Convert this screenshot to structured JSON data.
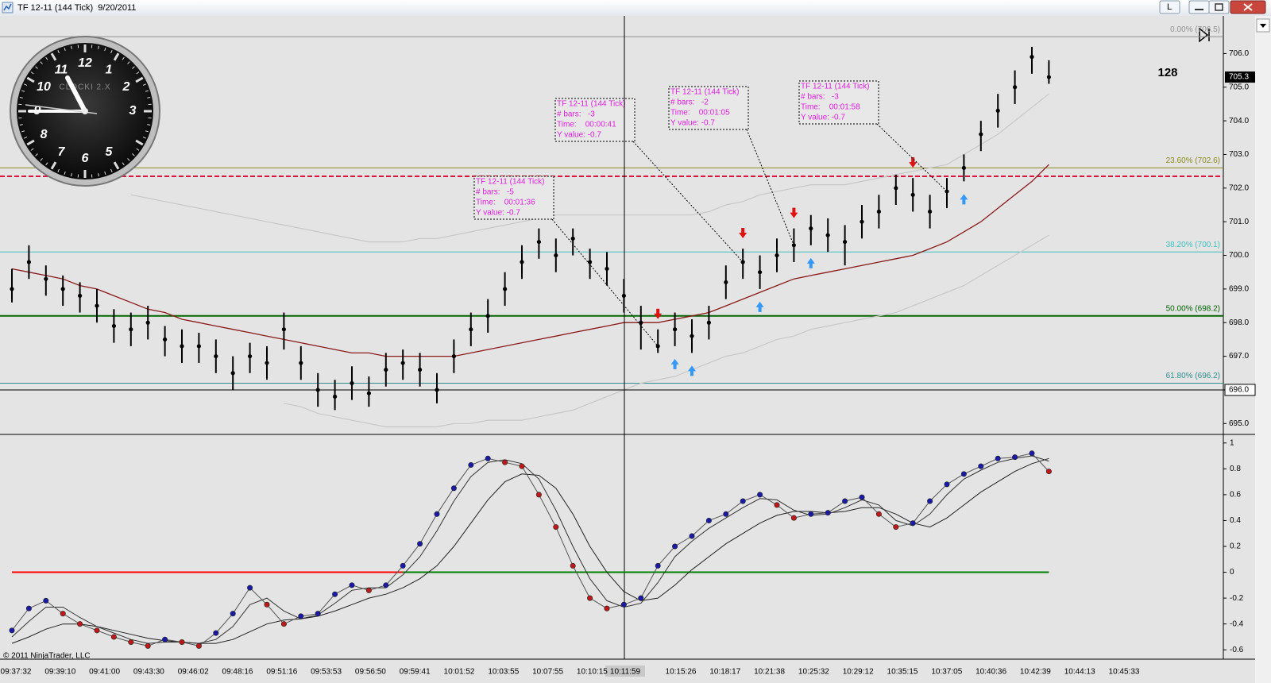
{
  "window": {
    "title": "TF 12-11 (144 Tick)  9/20/2011",
    "button": "L"
  },
  "clock": {
    "brand": "CLOCKI 2.X",
    "numerals": [
      12,
      1,
      2,
      3,
      5,
      6,
      7,
      8,
      9,
      10,
      11
    ]
  },
  "copyright": "© 2011 NinjaTrader, LLC",
  "chart_data": [
    {
      "type": "ohlc",
      "bar_color": "#000000",
      "high": [
        699.6,
        700.3,
        699.7,
        699.4,
        699.2,
        699.0,
        698.4,
        698.3,
        698.5,
        697.9,
        697.8,
        697.7,
        697.5,
        697.0,
        697.4,
        697.3,
        698.3,
        697.3,
        696.5,
        696.3,
        696.7,
        696.4,
        697.1,
        697.2,
        697.1,
        696.5,
        697.5,
        698.3,
        698.7,
        699.5,
        700.3,
        700.8,
        700.5,
        700.8,
        700.2,
        700.1,
        699.3,
        698.5,
        697.8,
        698.3,
        698.1,
        698.5,
        699.7,
        700.2,
        700.0,
        700.5,
        700.8,
        701.2,
        701.1,
        700.9,
        701.5,
        701.8,
        702.4,
        702.3,
        701.8,
        702.3,
        703.0,
        704.0,
        704.8,
        705.5,
        706.2,
        705.8
      ],
      "low": [
        698.6,
        699.3,
        698.8,
        698.5,
        698.3,
        698.0,
        697.4,
        697.3,
        697.5,
        697.0,
        696.8,
        696.8,
        696.5,
        696.0,
        696.5,
        696.3,
        697.2,
        696.3,
        695.5,
        695.4,
        695.7,
        695.5,
        696.1,
        696.3,
        696.1,
        695.6,
        696.5,
        697.3,
        697.7,
        698.5,
        699.3,
        699.9,
        699.5,
        700.0,
        699.3,
        699.1,
        698.3,
        697.2,
        697.1,
        697.3,
        697.1,
        697.5,
        698.7,
        699.3,
        699.0,
        699.5,
        699.8,
        700.3,
        700.1,
        699.7,
        700.5,
        700.8,
        701.5,
        701.3,
        700.8,
        701.4,
        702.2,
        703.1,
        703.8,
        704.5,
        705.4,
        705.1
      ],
      "close": [
        699.0,
        699.8,
        699.3,
        699.0,
        698.8,
        698.5,
        697.9,
        697.8,
        698.0,
        697.5,
        697.3,
        697.3,
        697.0,
        696.5,
        697.0,
        696.8,
        697.8,
        696.8,
        696.0,
        695.8,
        696.2,
        695.9,
        696.6,
        696.8,
        696.6,
        696.0,
        697.0,
        697.8,
        698.2,
        699.0,
        699.8,
        700.4,
        700.0,
        700.5,
        699.8,
        699.6,
        698.8,
        698.0,
        697.3,
        697.8,
        697.6,
        698.0,
        699.2,
        699.8,
        699.5,
        700.0,
        700.3,
        700.8,
        700.6,
        700.4,
        701.0,
        701.3,
        702.0,
        701.8,
        701.3,
        701.9,
        702.6,
        703.6,
        704.3,
        705.0,
        705.9,
        705.3
      ],
      "series": [
        {
          "color": "#8b1a1a",
          "values": [
            699.6,
            699.5,
            699.4,
            699.3,
            699.1,
            699.0,
            698.8,
            698.6,
            698.4,
            698.3,
            698.1,
            698.0,
            697.9,
            697.8,
            697.7,
            697.6,
            697.5,
            697.4,
            697.3,
            697.2,
            697.1,
            697.1,
            697.0,
            697.0,
            697.0,
            697.0,
            697.0,
            697.1,
            697.2,
            697.3,
            697.4,
            697.5,
            697.6,
            697.7,
            697.8,
            697.9,
            698.0,
            698.0,
            698.0,
            698.1,
            698.2,
            698.3,
            698.5,
            698.7,
            698.9,
            699.1,
            699.3,
            699.4,
            699.5,
            699.6,
            699.7,
            699.8,
            699.9,
            700.0,
            700.2,
            700.4,
            700.7,
            701.0,
            701.4,
            701.8,
            702.2,
            702.7
          ]
        },
        {
          "color": "#c8c8c8",
          "values": [
            null,
            null,
            null,
            null,
            null,
            null,
            null,
            701.8,
            701.7,
            701.6,
            701.5,
            701.4,
            701.3,
            701.2,
            701.1,
            701.0,
            700.9,
            700.8,
            700.7,
            700.6,
            700.5,
            700.4,
            700.4,
            700.4,
            700.5,
            700.5,
            700.6,
            700.7,
            700.8,
            700.9,
            701.0,
            701.1,
            701.2,
            701.2,
            701.2,
            701.2,
            701.2,
            701.2,
            701.2,
            701.2,
            701.2,
            701.3,
            701.5,
            701.6,
            701.8,
            701.9,
            702.0,
            702.1,
            702.1,
            702.1,
            702.2,
            702.3,
            702.4,
            702.5,
            702.6,
            702.7,
            703.0,
            703.3,
            703.6,
            704.0,
            704.4,
            704.8
          ]
        },
        {
          "color": "#c8c8c8",
          "values": [
            null,
            null,
            null,
            null,
            null,
            null,
            null,
            null,
            null,
            null,
            null,
            null,
            null,
            null,
            null,
            null,
            695.6,
            695.5,
            695.3,
            695.2,
            695.1,
            695.0,
            694.9,
            694.9,
            694.9,
            694.9,
            695.0,
            695.0,
            695.1,
            695.1,
            695.1,
            695.2,
            695.3,
            695.4,
            695.6,
            695.8,
            696.0,
            696.2,
            696.3,
            696.4,
            696.6,
            696.8,
            697.0,
            697.1,
            697.3,
            697.5,
            697.6,
            697.8,
            697.9,
            698.0,
            698.1,
            698.2,
            698.3,
            698.5,
            698.7,
            698.9,
            699.1,
            699.4,
            699.7,
            700.0,
            700.3,
            700.6
          ]
        }
      ],
      "ylim": [
        694.7,
        706.6
      ],
      "yticks": [
        {
          "value": 695,
          "label": "695.0"
        },
        {
          "value": 696,
          "label": "696.0"
        },
        {
          "value": 697,
          "label": "697.0"
        },
        {
          "value": 698,
          "label": "698.0"
        },
        {
          "value": 699,
          "label": "699.0"
        },
        {
          "value": 700,
          "label": "700.0"
        },
        {
          "value": 701,
          "label": "701.0"
        },
        {
          "value": 702,
          "label": "702.0"
        },
        {
          "value": 703,
          "label": "703.0"
        },
        {
          "value": 704,
          "label": "704.0"
        },
        {
          "value": 705,
          "label": "705.0"
        },
        {
          "value": 706,
          "label": "706.0"
        }
      ],
      "levels": [
        {
          "value": 706.5,
          "label": "0.00% (706.5)",
          "color": "#909090"
        },
        {
          "value": 702.6,
          "label": "23.60% (702.6)",
          "color": "#8a8a20"
        },
        {
          "value": 700.1,
          "label": "38.20% (700.1)",
          "color": "#40c0c0"
        },
        {
          "value": 698.2,
          "label": "50.00% (698.2)",
          "color": "#006400"
        },
        {
          "value": 696.2,
          "label": "61.80% (696.2)",
          "color": "#2f8f8f"
        }
      ],
      "dashed_level": {
        "value": 702.35,
        "color": "#dc143c"
      },
      "last_price": {
        "value": 705.3,
        "label": "705.3"
      },
      "crosshair": {
        "value": 696.0,
        "label": "696.0",
        "time_label": "10:11:59"
      },
      "tick_counter": 128,
      "down_arrows": [
        38,
        43,
        46,
        53
      ],
      "up_arrows": [
        39,
        40,
        44,
        47,
        56
      ],
      "arrow_colors": [
        "#e01010",
        "#3399ff"
      ],
      "annotations": [
        {
          "bar": 38,
          "lines": [
            "TF 12-11 (144 Tick)",
            "# bars:   -5",
            "Time:    00:01:36",
            "Y value: -0.7"
          ]
        },
        {
          "bar": 43,
          "lines": [
            "TF 12-11 (144 Tick)",
            "# bars:   -3",
            "Time:    00:00:41",
            "Y value: -0.7"
          ]
        },
        {
          "bar": 46,
          "lines": [
            "TF 12-11 (144 Tick)",
            "# bars:   -2",
            "Time:    00:01:05",
            "Y value: -0.7"
          ]
        },
        {
          "bar": 55,
          "lines": [
            "TF 12-11 (144 Tick)",
            "# bars:   -3",
            "Time:    00:01:58",
            "Y value: -0.7"
          ]
        }
      ]
    },
    {
      "type": "oscillator",
      "series": [
        {
          "rising_color": "#1a1aa8",
          "falling_color": "#c01818",
          "values": [
            -0.45,
            -0.28,
            -0.22,
            -0.32,
            -0.4,
            -0.45,
            -0.5,
            -0.54,
            -0.57,
            -0.52,
            -0.54,
            -0.57,
            -0.47,
            -0.32,
            -0.12,
            -0.25,
            -0.4,
            -0.34,
            -0.32,
            -0.17,
            -0.1,
            -0.14,
            -0.1,
            0.05,
            0.22,
            0.45,
            0.65,
            0.83,
            0.88,
            0.85,
            0.82,
            0.6,
            0.35,
            0.05,
            -0.2,
            -0.28,
            -0.25,
            -0.2,
            0.05,
            0.2,
            0.28,
            0.4,
            0.45,
            0.55,
            0.6,
            0.52,
            0.42,
            0.45,
            0.46,
            0.55,
            0.58,
            0.45,
            0.35,
            0.38,
            0.55,
            0.68,
            0.76,
            0.82,
            0.88,
            0.89,
            0.92,
            0.78
          ]
        },
        {
          "color": "#333333",
          "values": [
            -0.5,
            -0.38,
            -0.27,
            -0.27,
            -0.35,
            -0.42,
            -0.47,
            -0.52,
            -0.55,
            -0.54,
            -0.54,
            -0.55,
            -0.52,
            -0.42,
            -0.25,
            -0.2,
            -0.3,
            -0.36,
            -0.33,
            -0.24,
            -0.14,
            -0.12,
            -0.12,
            -0.02,
            0.12,
            0.32,
            0.55,
            0.74,
            0.85,
            0.87,
            0.84,
            0.72,
            0.48,
            0.2,
            -0.05,
            -0.22,
            -0.27,
            -0.24,
            -0.08,
            0.12,
            0.24,
            0.34,
            0.42,
            0.5,
            0.57,
            0.56,
            0.48,
            0.44,
            0.45,
            0.5,
            0.56,
            0.52,
            0.4,
            0.36,
            0.45,
            0.6,
            0.72,
            0.79,
            0.85,
            0.88,
            0.9,
            0.86
          ]
        },
        {
          "color": "#222222",
          "values": [
            -0.55,
            -0.5,
            -0.44,
            -0.4,
            -0.4,
            -0.42,
            -0.45,
            -0.48,
            -0.51,
            -0.53,
            -0.54,
            -0.55,
            -0.55,
            -0.52,
            -0.46,
            -0.4,
            -0.37,
            -0.36,
            -0.34,
            -0.3,
            -0.25,
            -0.2,
            -0.17,
            -0.12,
            -0.05,
            0.05,
            0.2,
            0.38,
            0.56,
            0.7,
            0.76,
            0.75,
            0.65,
            0.45,
            0.2,
            0.0,
            -0.15,
            -0.22,
            -0.2,
            -0.1,
            0.02,
            0.12,
            0.22,
            0.3,
            0.38,
            0.44,
            0.47,
            0.47,
            0.46,
            0.47,
            0.5,
            0.5,
            0.45,
            0.38,
            0.35,
            0.42,
            0.52,
            0.62,
            0.7,
            0.78,
            0.84,
            0.88
          ]
        }
      ],
      "zero_line": {
        "value": 0,
        "colors": [
          "#ff0000",
          "#008000"
        ]
      },
      "ylim": [
        -0.66,
        1.06
      ],
      "yticks": [
        1,
        0.8,
        0.6,
        0.4,
        0.2,
        0,
        -0.2,
        -0.4,
        -0.6
      ],
      "time_labels": [
        "09:37:32",
        "09:39:10",
        "09:41:00",
        "09:43:30",
        "09:46:02",
        "09:48:16",
        "09:51:16",
        "09:53:53",
        "09:56:50",
        "09:59:41",
        "10:01:52",
        "10:03:55",
        "10:07:55",
        "10:10:15",
        "10:15:26",
        "10:18:17",
        "10:21:38",
        "10:25:32",
        "10:29:12",
        "10:35:15",
        "10:37:05",
        "10:40:36",
        "10:42:39",
        "10:44:13",
        "10:45:33"
      ]
    }
  ]
}
